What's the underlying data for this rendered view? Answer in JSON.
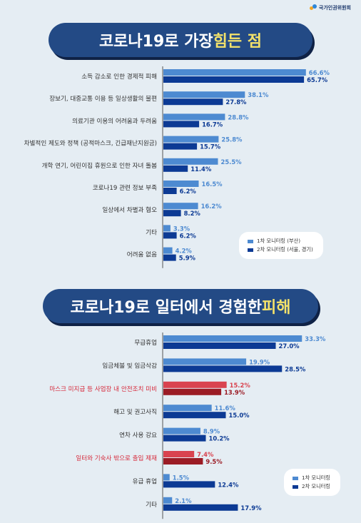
{
  "header": {
    "logo_text": "국가인권위원회"
  },
  "colors": {
    "series1": "#4d8ad1",
    "series2": "#0c3a94",
    "highlight_bar1": "#d9434f",
    "highlight_bar2": "#9b1c25",
    "title_bg": "#234a85",
    "title_highlight": "#f4e26a",
    "highlight_label": "#d6293a"
  },
  "chart_data": [
    {
      "type": "bar",
      "orientation": "horizontal",
      "title": {
        "prefix": "코로나19로 가장 ",
        "highlight": "힘든 점"
      },
      "legend": {
        "position": "bottom-right",
        "series1_label": "1차 모니터링 (부산)",
        "series2_label": "2차 모니터링 (서울, 경기)"
      },
      "categories": [
        "소득 감소로 인한 경제적 피해",
        "장보기, 대중교통 이용 등 일상생활의 불편",
        "의료기관 이용의 어려움과 두려움",
        "차별적인 제도와 정책 (공적마스크, 긴급재난지원금)",
        "개학 연기, 어린이집 휴원으로 인한 자녀 돌봄",
        "코로나19 관련 정보 부족",
        "일상에서 차별과 혐오",
        "기타",
        "어려움 없음"
      ],
      "series": [
        {
          "name": "1차 모니터링 (부산)",
          "values": [
            66.6,
            38.1,
            28.8,
            25.8,
            25.5,
            16.5,
            16.2,
            3.3,
            4.2
          ],
          "labels": [
            "66.6%",
            "38.1%",
            "28.8%",
            "25.8%",
            "25.5%",
            "16.5%",
            "16.2%",
            "3.3%",
            "4.2%"
          ]
        },
        {
          "name": "2차 모니터링 (서울, 경기)",
          "values": [
            65.7,
            27.8,
            16.7,
            15.7,
            11.4,
            6.2,
            8.2,
            6.2,
            5.9
          ],
          "labels": [
            "65.7%",
            "27.8%",
            "16.7%",
            "15.7%",
            "11.4%",
            "6.2%",
            "8.2%",
            "6.2%",
            "5.9%"
          ]
        }
      ],
      "highlighted_categories": [],
      "xlim": [
        0,
        70
      ]
    },
    {
      "type": "bar",
      "orientation": "horizontal",
      "title": {
        "prefix": "코로나19로 일터에서 경험한 ",
        "highlight": "피해"
      },
      "legend": {
        "position": "bottom-right",
        "series1_label": "1차 모니터링",
        "series2_label": "2차 모니터링"
      },
      "categories": [
        "무급휴업",
        "임금체불 및 임금삭감",
        "마스크 미지급 등 사업장 내 안전조치 미비",
        "해고 및 권고사직",
        "연차 사용 강요",
        "일터와 기숙사 밖으로 출입 제재",
        "유급 휴업",
        "기타"
      ],
      "series": [
        {
          "name": "1차 모니터링",
          "values": [
            33.3,
            19.9,
            15.2,
            11.6,
            8.9,
            7.4,
            1.5,
            2.1
          ],
          "labels": [
            "33.3%",
            "19.9%",
            "15.2%",
            "11.6%",
            "8.9%",
            "7.4%",
            "1.5%",
            "2.1%"
          ]
        },
        {
          "name": "2차 모니터링",
          "values": [
            27.0,
            28.5,
            13.9,
            15.0,
            10.2,
            9.5,
            12.4,
            17.9
          ],
          "labels": [
            "27.0%",
            "28.5%",
            "13.9%",
            "15.0%",
            "10.2%",
            "9.5%",
            "12.4%",
            "17.9%"
          ]
        }
      ],
      "highlighted_categories": [
        2,
        5
      ],
      "xlim": [
        0,
        36
      ]
    }
  ]
}
